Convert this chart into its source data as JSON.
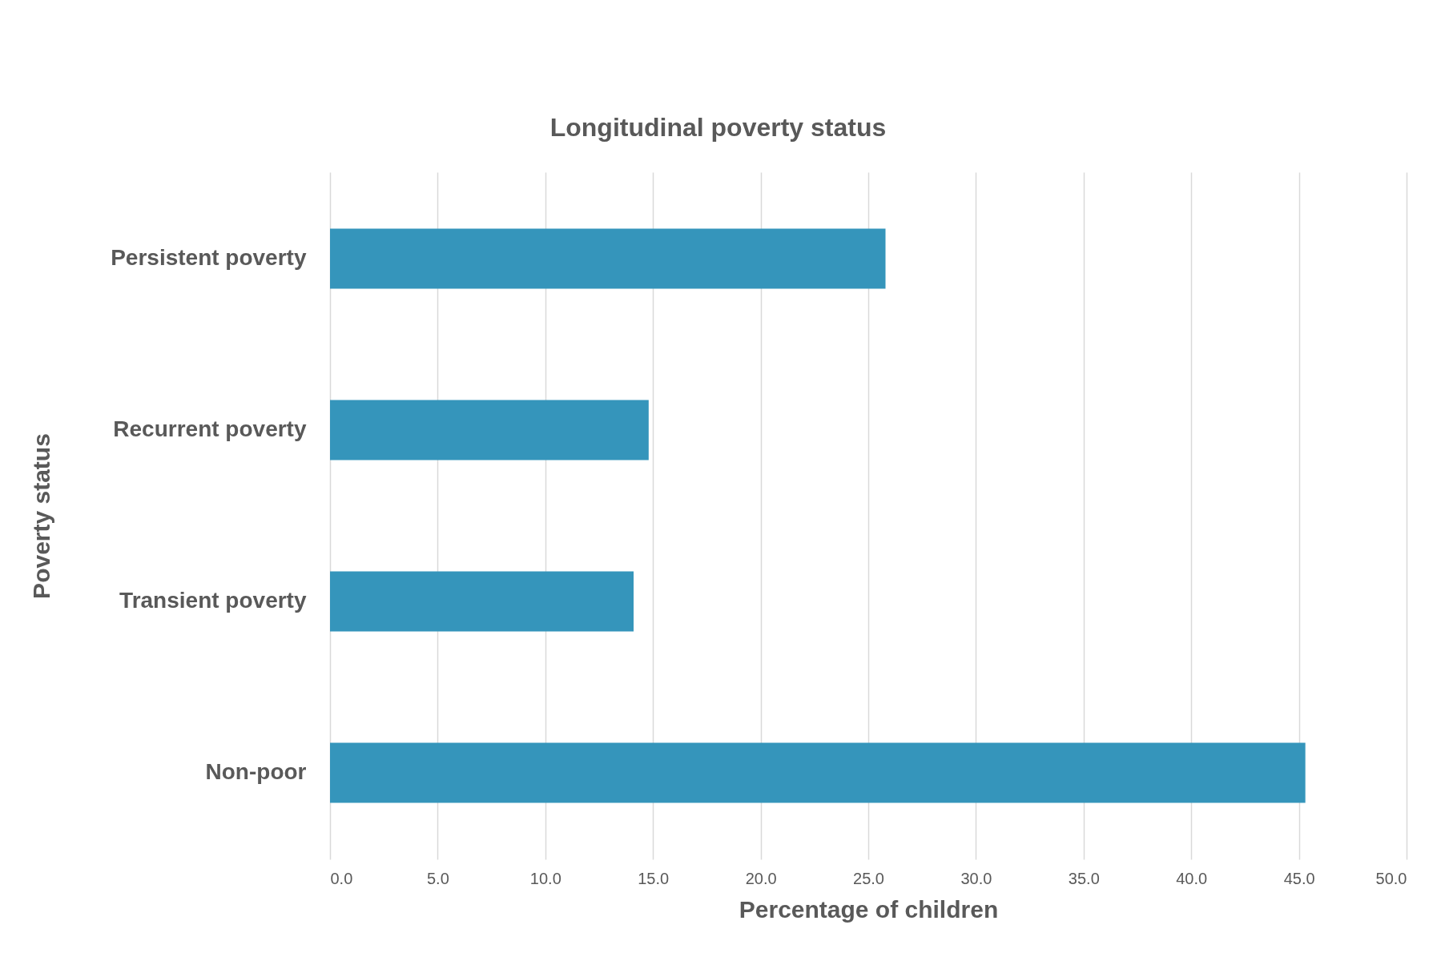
{
  "chart_data": {
    "type": "bar",
    "orientation": "horizontal",
    "title": "Longitudinal poverty status",
    "xlabel": "Percentage of children",
    "ylabel": "Poverty status",
    "categories": [
      "Persistent poverty",
      "Recurrent poverty",
      "Transient poverty",
      "Non-poor"
    ],
    "values": [
      25.8,
      14.8,
      14.1,
      45.3
    ],
    "color": "#3595bb",
    "xlim": [
      0,
      50
    ],
    "xticks": [
      {
        "value": 0,
        "label": "0.0"
      },
      {
        "value": 5,
        "label": "5.0"
      },
      {
        "value": 10,
        "label": "10.0"
      },
      {
        "value": 15,
        "label": "15.0"
      },
      {
        "value": 20,
        "label": "20.0"
      },
      {
        "value": 25,
        "label": "25.0"
      },
      {
        "value": 30,
        "label": "30.0"
      },
      {
        "value": 35,
        "label": "35.0"
      },
      {
        "value": 40,
        "label": "40.0"
      },
      {
        "value": 45,
        "label": "45.0"
      },
      {
        "value": 50,
        "label": "50.0"
      }
    ],
    "grid": "x"
  }
}
